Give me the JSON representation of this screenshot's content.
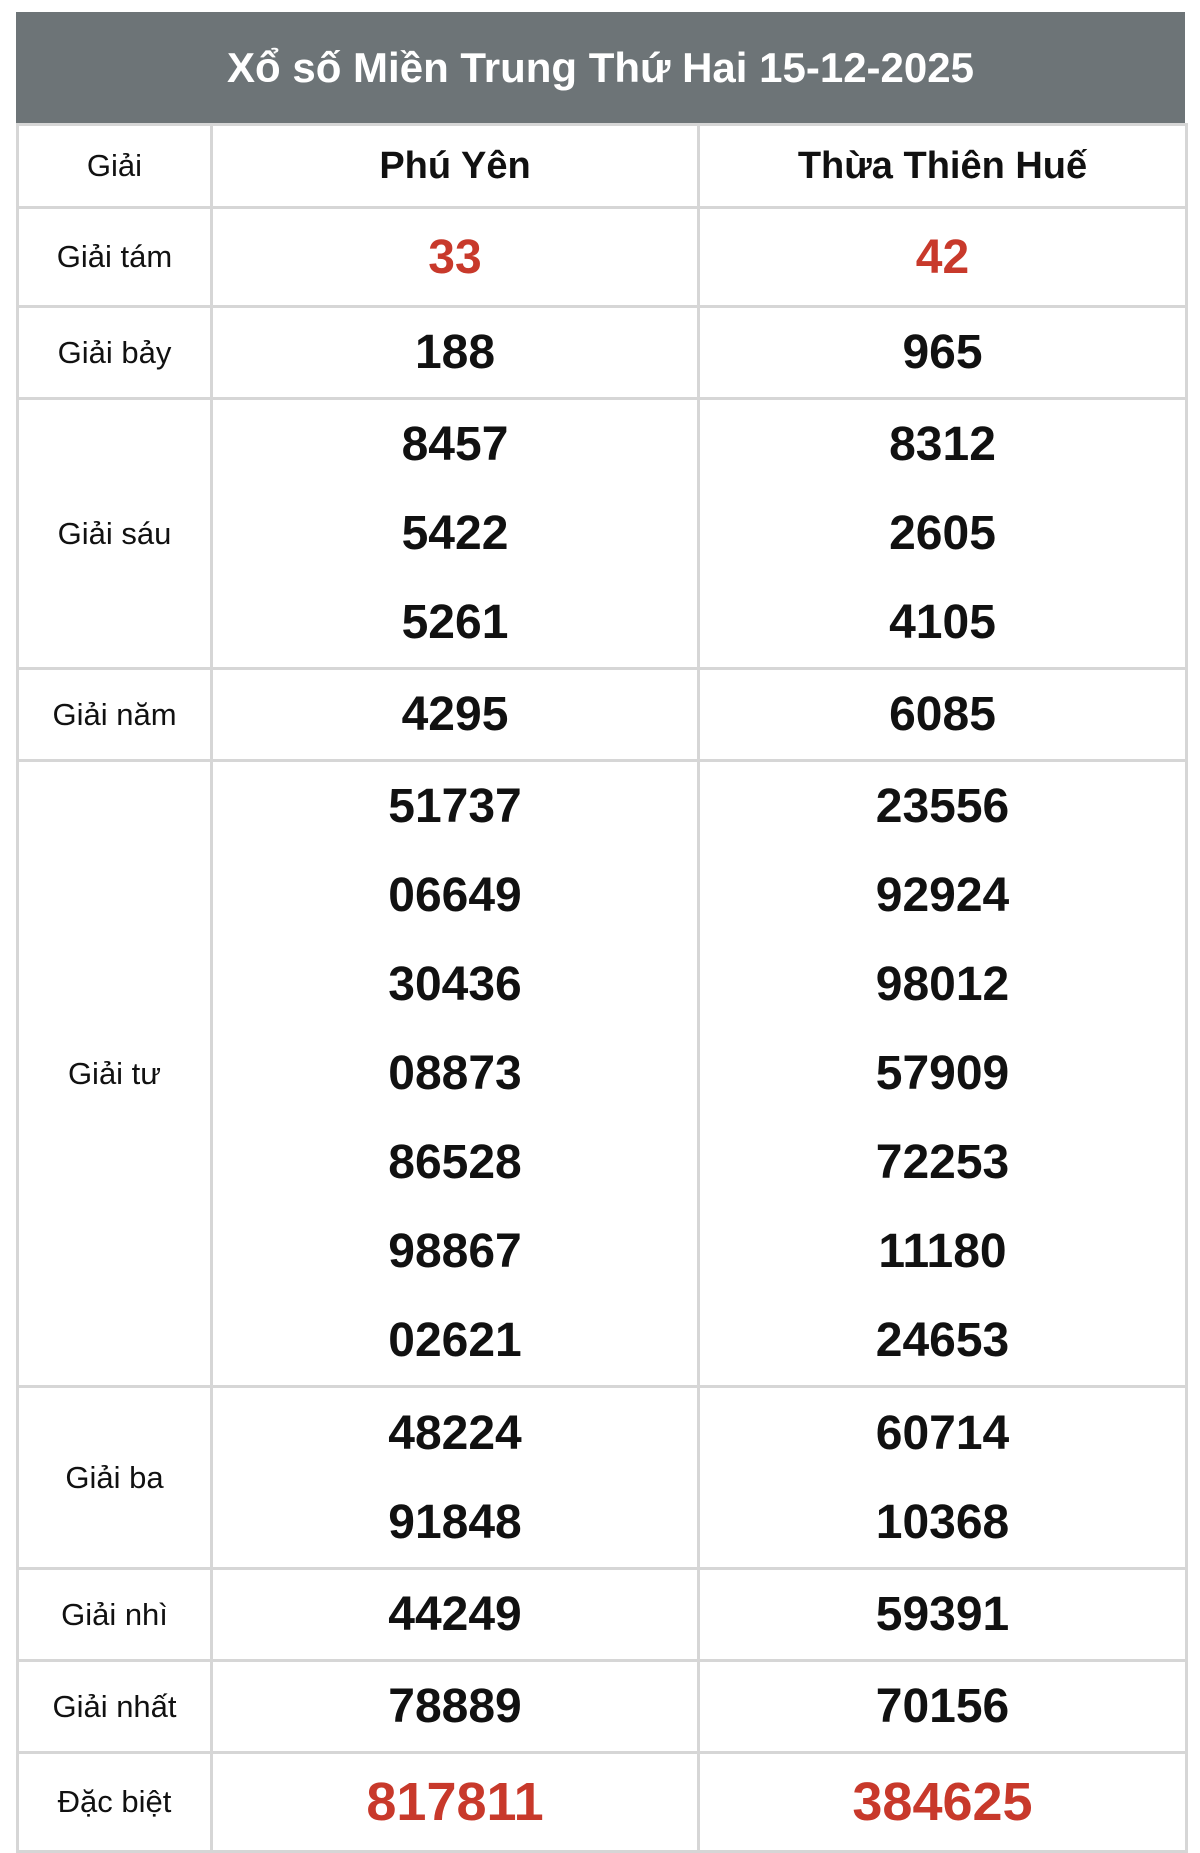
{
  "title": "Xổ số Miền Trung Thứ Hai 15-12-2025",
  "colors": {
    "header_bg": "#6d7477",
    "highlight": "#c8392b"
  },
  "columns": {
    "label": "Giải",
    "province1": "Phú Yên",
    "province2": "Thừa Thiên Huế"
  },
  "prizes": [
    {
      "label": "Giải tám",
      "p1": [
        "33"
      ],
      "p2": [
        "42"
      ],
      "highlight": true
    },
    {
      "label": "Giải bảy",
      "p1": [
        "188"
      ],
      "p2": [
        "965"
      ]
    },
    {
      "label": "Giải sáu",
      "p1": [
        "8457",
        "5422",
        "5261"
      ],
      "p2": [
        "8312",
        "2605",
        "4105"
      ]
    },
    {
      "label": "Giải năm",
      "p1": [
        "4295"
      ],
      "p2": [
        "6085"
      ]
    },
    {
      "label": "Giải tư",
      "p1": [
        "51737",
        "06649",
        "30436",
        "08873",
        "86528",
        "98867",
        "02621"
      ],
      "p2": [
        "23556",
        "92924",
        "98012",
        "57909",
        "72253",
        "11180",
        "24653"
      ]
    },
    {
      "label": "Giải ba",
      "p1": [
        "48224",
        "91848"
      ],
      "p2": [
        "60714",
        "10368"
      ]
    },
    {
      "label": "Giải nhì",
      "p1": [
        "44249"
      ],
      "p2": [
        "59391"
      ]
    },
    {
      "label": "Giải nhất",
      "p1": [
        "78889"
      ],
      "p2": [
        "70156"
      ]
    },
    {
      "label": "Đặc biệt",
      "p1": [
        "817811"
      ],
      "p2": [
        "384625"
      ],
      "highlight": true
    }
  ]
}
